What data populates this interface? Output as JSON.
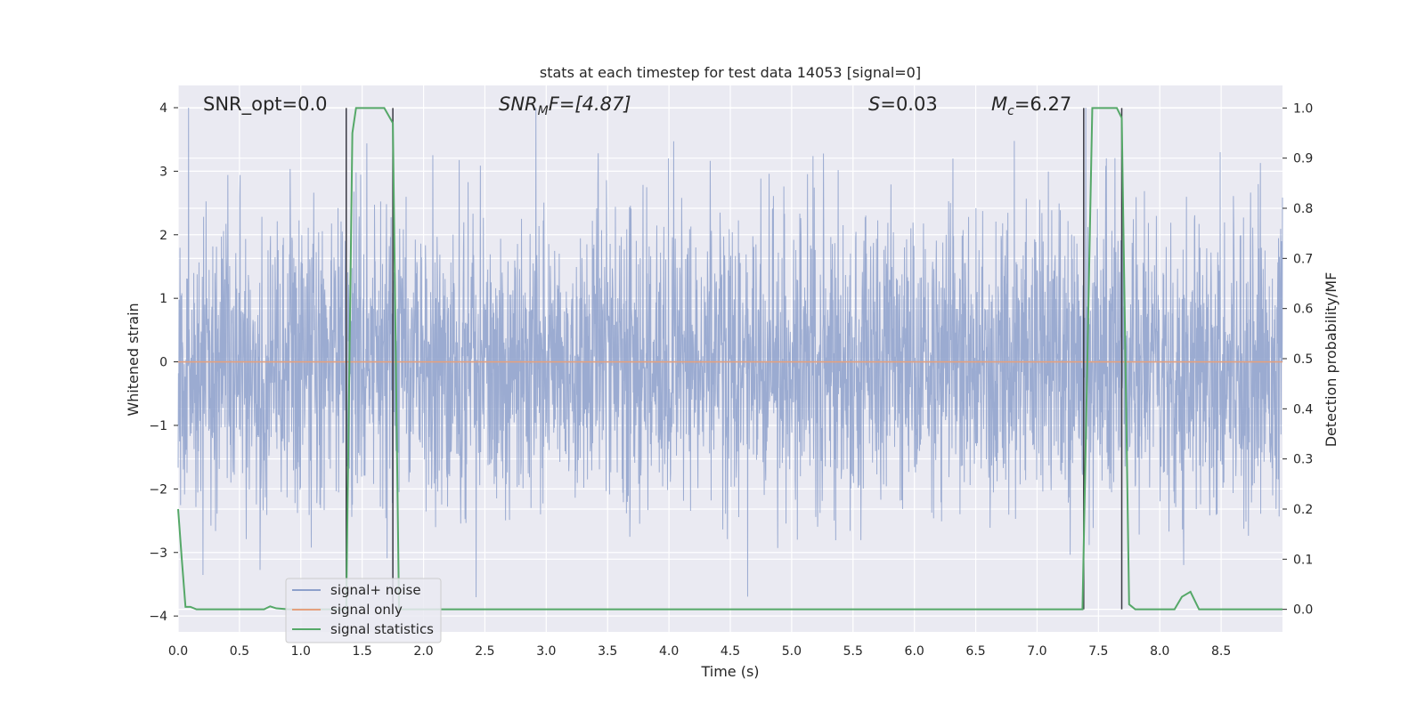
{
  "chart_data": {
    "type": "line",
    "title": "stats at each timestep for test data 14053 [signal=0]",
    "xlabel": "Time (s)",
    "ylabel": "Whitened strain",
    "ylabel_right": "Detection probability/MF",
    "xlim": [
      0,
      9.0
    ],
    "ylim": [
      -4.25,
      4.35
    ],
    "ylim_right": [
      -0.045,
      1.045
    ],
    "x_ticks": [
      "0.0",
      "0.5",
      "1.0",
      "1.5",
      "2.0",
      "2.5",
      "3.0",
      "3.5",
      "4.0",
      "4.5",
      "5.0",
      "5.5",
      "6.0",
      "6.5",
      "7.0",
      "7.5",
      "8.0",
      "8.5"
    ],
    "x_tick_values": [
      0,
      0.5,
      1,
      1.5,
      2,
      2.5,
      3,
      3.5,
      4,
      4.5,
      5,
      5.5,
      6,
      6.5,
      7,
      7.5,
      8,
      8.5
    ],
    "y_ticks": [
      "−4",
      "−3",
      "−2",
      "−1",
      "0",
      "1",
      "2",
      "3",
      "4"
    ],
    "y_tick_values": [
      -4,
      -3,
      -2,
      -1,
      0,
      1,
      2,
      3,
      4
    ],
    "y_ticks_right": [
      "0.0",
      "0.1",
      "0.2",
      "0.3",
      "0.4",
      "0.5",
      "0.6",
      "0.7",
      "0.8",
      "0.9",
      "1.0"
    ],
    "y_tick_values_right": [
      0,
      0.1,
      0.2,
      0.3,
      0.4,
      0.5,
      0.6,
      0.7,
      0.8,
      0.9,
      1.0
    ],
    "grid": true,
    "legend_position": "lower-left",
    "annotations": {
      "snr_opt": "SNR_opt=0.0",
      "snr_mf_base": "SNR",
      "snr_mf_sub": "M",
      "snr_mf_rest": "F=[4.87]",
      "s_var": "S",
      "s_val": "=0.03",
      "mc_var": "M",
      "mc_sub": "c",
      "mc_val": "=6.27"
    },
    "detection_markers_x": [
      1.37,
      1.75,
      7.38,
      7.69
    ],
    "series": [
      {
        "name": "signal+ noise",
        "color": "#8da0cb",
        "kind": "whitened noise (spread about 0, peaks near ±3.5, range ≈ -3.8 to 4.0)"
      },
      {
        "name": "signal only",
        "color": "#e5a07e",
        "x": [
          0,
          9.0
        ],
        "y": [
          0,
          0
        ]
      },
      {
        "name": "signal statistics",
        "color": "#55a868",
        "axis": "right",
        "x": [
          0.0,
          0.03,
          0.06,
          0.1,
          0.15,
          0.3,
          0.5,
          0.7,
          0.75,
          0.8,
          0.9,
          1.0,
          1.2,
          1.37,
          1.42,
          1.45,
          1.5,
          1.6,
          1.68,
          1.75,
          1.8,
          2.0,
          3.0,
          4.0,
          5.0,
          6.0,
          7.0,
          7.37,
          7.45,
          7.5,
          7.6,
          7.65,
          7.69,
          7.75,
          7.8,
          7.9,
          8.0,
          8.12,
          8.18,
          8.25,
          8.32,
          8.5,
          9.0
        ],
        "y": [
          0.2,
          0.1,
          0.005,
          0.005,
          0.0,
          0.0,
          0.0,
          0.0,
          0.006,
          0.002,
          0.0,
          0.0,
          0.0,
          0.0,
          0.95,
          1.0,
          1.0,
          1.0,
          1.0,
          0.97,
          0.0,
          0.0,
          0.0,
          0.0,
          0.0,
          0.0,
          0.0,
          0.0,
          1.0,
          1.0,
          1.0,
          1.0,
          0.98,
          0.01,
          0.0,
          0.0,
          0.0,
          0.0,
          0.025,
          0.035,
          0.0,
          0.0,
          0.0
        ]
      }
    ]
  }
}
